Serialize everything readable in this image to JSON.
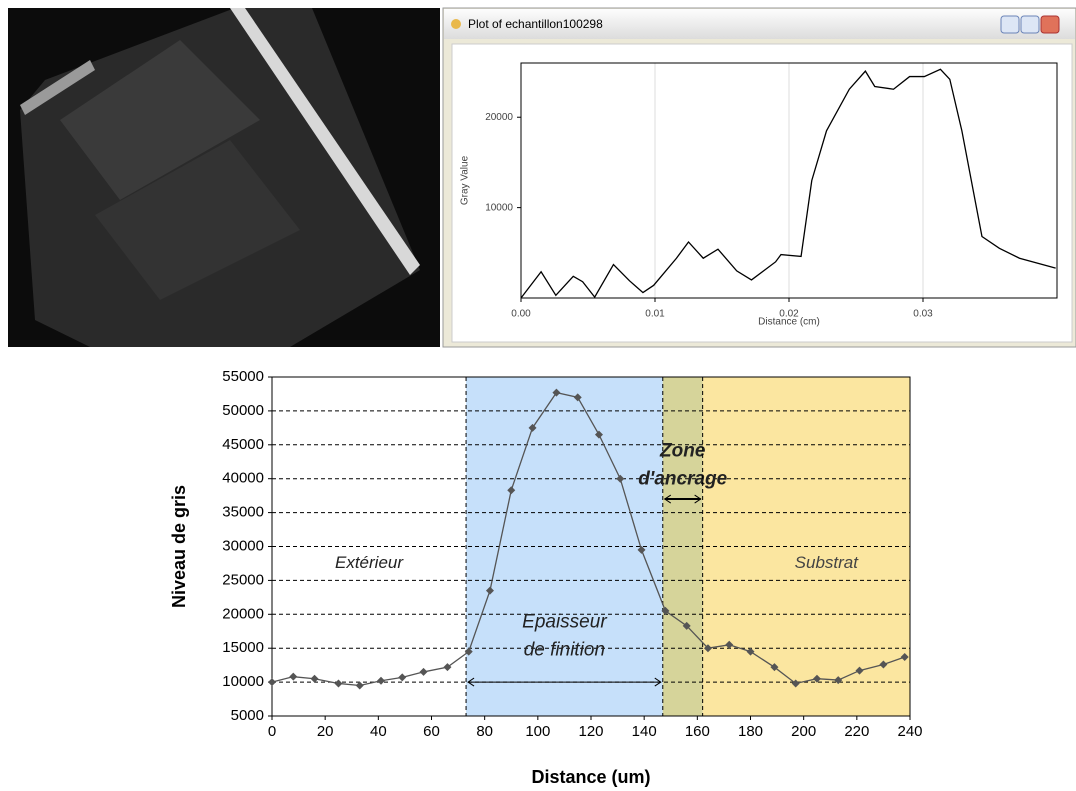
{
  "window": {
    "title": "Plot of echantillon100298"
  },
  "chart_data": [
    {
      "type": "line",
      "xlabel": "Distance (cm)",
      "ylabel": "Gray Value",
      "xlim": [
        0,
        0.04
      ],
      "ylim": [
        0,
        26000
      ],
      "xticks": [
        {
          "value": 0,
          "label": "0.00"
        },
        0.01,
        0.02,
        0.03
      ],
      "yticks": [
        10000,
        20000
      ],
      "grid": "x",
      "color": "#000000",
      "x": [
        0,
        0.0015,
        0.0026,
        0.0039,
        0.0046,
        0.0055,
        0.0069,
        0.0081,
        0.0091,
        0.0099,
        0.0116,
        0.0125,
        0.0136,
        0.0147,
        0.0161,
        0.0172,
        0.019,
        0.0194,
        0.0209,
        0.0217,
        0.0228,
        0.0245,
        0.0257,
        0.0264,
        0.0278,
        0.029,
        0.0301,
        0.0313,
        0.032,
        0.0329,
        0.0344,
        0.0357,
        0.0372,
        0.0399
      ],
      "values": [
        0,
        2900,
        300,
        2400,
        1800,
        100,
        3700,
        1900,
        600,
        1400,
        4400,
        6200,
        4400,
        5400,
        3000,
        2000,
        4000,
        4800,
        4600,
        13000,
        18500,
        23100,
        25100,
        23400,
        23100,
        24500,
        24500,
        25300,
        24200,
        18500,
        6800,
        5500,
        4400,
        3300
      ]
    },
    {
      "type": "line",
      "xlabel": "Distance (um)",
      "ylabel": "Niveau de gris",
      "xlim": [
        0,
        240
      ],
      "ylim": [
        5000,
        55000
      ],
      "xticks": [
        0,
        20,
        40,
        60,
        80,
        100,
        120,
        140,
        160,
        180,
        200,
        220,
        240
      ],
      "yticks": [
        5000,
        10000,
        15000,
        20000,
        25000,
        30000,
        35000,
        40000,
        45000,
        50000,
        55000
      ],
      "grid": "y",
      "color": "#555555",
      "regions": [
        {
          "start": 0,
          "end": 73,
          "color": "#ffffff",
          "label": [
            "Extérieur"
          ]
        },
        {
          "start": 73,
          "end": 147,
          "color": "#c6e0fa",
          "label": [
            "Epaisseur",
            "de finition"
          ]
        },
        {
          "start": 147,
          "end": 162,
          "color": "#d6d49a",
          "label": [
            "Zone",
            "d'ancrage"
          ]
        },
        {
          "start": 162,
          "end": 240,
          "color": "#fbe6a0",
          "label": [
            "Substrat"
          ]
        }
      ],
      "x": [
        0,
        8,
        16,
        25,
        33,
        41,
        49,
        57,
        66,
        74,
        82,
        90,
        98,
        107,
        115,
        123,
        131,
        139,
        148,
        156,
        164,
        172,
        180,
        189,
        197,
        205,
        213,
        221,
        230,
        238
      ],
      "values": [
        10000,
        10800,
        10500,
        9800,
        9500,
        10200,
        10700,
        11500,
        12200,
        14500,
        23500,
        38300,
        47500,
        52700,
        52000,
        46500,
        40000,
        29500,
        20500,
        18300,
        15000,
        15500,
        14500,
        12200,
        9800,
        10500,
        10300,
        11700,
        12600,
        13700
      ]
    }
  ]
}
